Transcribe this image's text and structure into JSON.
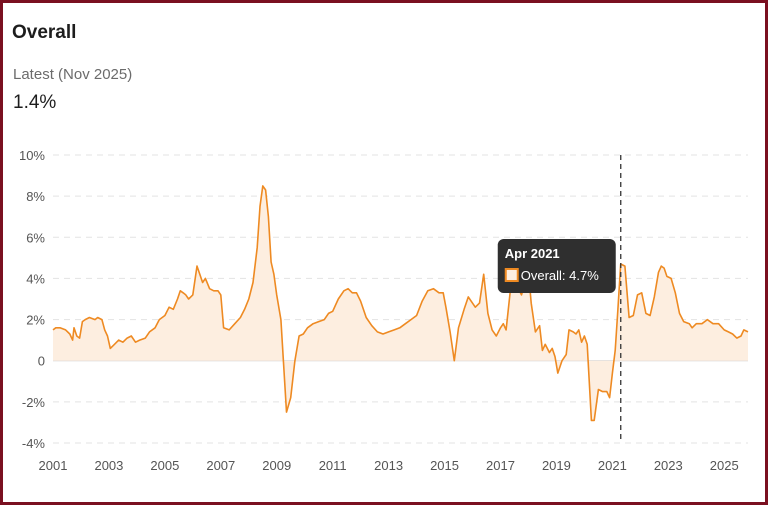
{
  "header": {
    "title": "Overall",
    "latest_label": "Latest (Nov 2025)",
    "latest_value": "1.4%"
  },
  "colors": {
    "line": "#ee8a22",
    "area": "#fdeee0",
    "frame": "#7a1020",
    "tooltip_bg": "#2f2f2f"
  },
  "chart_data": {
    "type": "area",
    "title": "Overall",
    "xlabel": "",
    "ylabel": "",
    "xlim": [
      2001.0,
      2025.85
    ],
    "ylim": [
      -4,
      10
    ],
    "y_ticks": [
      10,
      8,
      6,
      4,
      2,
      0,
      -2,
      -4
    ],
    "y_tick_labels": [
      "10%",
      "8%",
      "6%",
      "4%",
      "2%",
      "0",
      "-2%",
      "-4%"
    ],
    "x_ticks": [
      2001,
      2003,
      2005,
      2007,
      2009,
      2011,
      2013,
      2015,
      2017,
      2019,
      2021,
      2023,
      2025
    ],
    "x_tick_labels": [
      "2001",
      "2003",
      "2005",
      "2007",
      "2009",
      "2011",
      "2013",
      "2015",
      "2017",
      "2019",
      "2021",
      "2023",
      "2025"
    ],
    "grid": "horizontal-dashed",
    "series": [
      {
        "name": "Overall",
        "points": [
          [
            2001.0,
            1.5
          ],
          [
            2001.1,
            1.6
          ],
          [
            2001.25,
            1.6
          ],
          [
            2001.45,
            1.5
          ],
          [
            2001.6,
            1.3
          ],
          [
            2001.7,
            1.0
          ],
          [
            2001.75,
            1.6
          ],
          [
            2001.85,
            1.2
          ],
          [
            2001.95,
            1.1
          ],
          [
            2002.05,
            1.9
          ],
          [
            2002.15,
            2.0
          ],
          [
            2002.3,
            2.1
          ],
          [
            2002.5,
            2.0
          ],
          [
            2002.6,
            2.1
          ],
          [
            2002.75,
            2.0
          ],
          [
            2002.85,
            1.5
          ],
          [
            2002.95,
            1.2
          ],
          [
            2003.05,
            0.6
          ],
          [
            2003.2,
            0.8
          ],
          [
            2003.35,
            1.0
          ],
          [
            2003.5,
            0.9
          ],
          [
            2003.65,
            1.1
          ],
          [
            2003.8,
            1.2
          ],
          [
            2003.95,
            0.9
          ],
          [
            2004.1,
            1.0
          ],
          [
            2004.3,
            1.1
          ],
          [
            2004.45,
            1.4
          ],
          [
            2004.65,
            1.6
          ],
          [
            2004.8,
            2.0
          ],
          [
            2005.0,
            2.2
          ],
          [
            2005.15,
            2.6
          ],
          [
            2005.3,
            2.5
          ],
          [
            2005.45,
            3.0
          ],
          [
            2005.55,
            3.4
          ],
          [
            2005.65,
            3.3
          ],
          [
            2005.75,
            3.2
          ],
          [
            2005.85,
            3.0
          ],
          [
            2006.0,
            3.2
          ],
          [
            2006.15,
            4.6
          ],
          [
            2006.25,
            4.2
          ],
          [
            2006.35,
            3.8
          ],
          [
            2006.45,
            4.0
          ],
          [
            2006.6,
            3.5
          ],
          [
            2006.75,
            3.4
          ],
          [
            2006.9,
            3.4
          ],
          [
            2007.0,
            3.2
          ],
          [
            2007.1,
            1.6
          ],
          [
            2007.3,
            1.5
          ],
          [
            2007.5,
            1.8
          ],
          [
            2007.7,
            2.1
          ],
          [
            2007.85,
            2.5
          ],
          [
            2008.0,
            3.0
          ],
          [
            2008.15,
            3.8
          ],
          [
            2008.3,
            5.5
          ],
          [
            2008.4,
            7.5
          ],
          [
            2008.5,
            8.5
          ],
          [
            2008.6,
            8.3
          ],
          [
            2008.7,
            7.0
          ],
          [
            2008.8,
            4.8
          ],
          [
            2008.9,
            4.2
          ],
          [
            2009.0,
            3.2
          ],
          [
            2009.15,
            2.0
          ],
          [
            2009.35,
            -2.5
          ],
          [
            2009.5,
            -1.8
          ],
          [
            2009.65,
            0.0
          ],
          [
            2009.8,
            1.2
          ],
          [
            2009.95,
            1.3
          ],
          [
            2010.1,
            1.6
          ],
          [
            2010.3,
            1.8
          ],
          [
            2010.5,
            1.9
          ],
          [
            2010.7,
            2.0
          ],
          [
            2010.85,
            2.3
          ],
          [
            2011.0,
            2.4
          ],
          [
            2011.2,
            3.0
          ],
          [
            2011.4,
            3.4
          ],
          [
            2011.55,
            3.5
          ],
          [
            2011.7,
            3.3
          ],
          [
            2011.85,
            3.3
          ],
          [
            2012.0,
            2.9
          ],
          [
            2012.2,
            2.1
          ],
          [
            2012.4,
            1.7
          ],
          [
            2012.6,
            1.4
          ],
          [
            2012.8,
            1.3
          ],
          [
            2013.0,
            1.4
          ],
          [
            2013.2,
            1.5
          ],
          [
            2013.4,
            1.6
          ],
          [
            2013.6,
            1.8
          ],
          [
            2013.8,
            2.0
          ],
          [
            2014.0,
            2.2
          ],
          [
            2014.2,
            2.9
          ],
          [
            2014.4,
            3.4
          ],
          [
            2014.6,
            3.5
          ],
          [
            2014.8,
            3.3
          ],
          [
            2014.95,
            3.3
          ],
          [
            2015.05,
            2.6
          ],
          [
            2015.2,
            1.4
          ],
          [
            2015.35,
            0.0
          ],
          [
            2015.5,
            1.6
          ],
          [
            2015.7,
            2.5
          ],
          [
            2015.85,
            3.1
          ],
          [
            2015.95,
            2.9
          ],
          [
            2016.1,
            2.6
          ],
          [
            2016.25,
            2.8
          ],
          [
            2016.4,
            4.2
          ],
          [
            2016.55,
            2.3
          ],
          [
            2016.7,
            1.5
          ],
          [
            2016.85,
            1.2
          ],
          [
            2017.0,
            1.6
          ],
          [
            2017.1,
            1.8
          ],
          [
            2017.2,
            1.5
          ],
          [
            2017.35,
            3.4
          ],
          [
            2017.45,
            4.6
          ],
          [
            2017.6,
            3.6
          ],
          [
            2017.75,
            3.2
          ],
          [
            2017.9,
            3.9
          ],
          [
            2018.0,
            4.3
          ],
          [
            2018.1,
            2.8
          ],
          [
            2018.25,
            1.4
          ],
          [
            2018.4,
            1.7
          ],
          [
            2018.5,
            0.5
          ],
          [
            2018.6,
            0.8
          ],
          [
            2018.75,
            0.4
          ],
          [
            2018.85,
            0.6
          ],
          [
            2018.95,
            0.2
          ],
          [
            2019.05,
            -0.6
          ],
          [
            2019.2,
            0.0
          ],
          [
            2019.35,
            0.3
          ],
          [
            2019.45,
            1.5
          ],
          [
            2019.6,
            1.4
          ],
          [
            2019.7,
            1.3
          ],
          [
            2019.8,
            1.5
          ],
          [
            2019.9,
            0.9
          ],
          [
            2020.0,
            1.2
          ],
          [
            2020.1,
            0.8
          ],
          [
            2020.25,
            -2.9
          ],
          [
            2020.35,
            -2.9
          ],
          [
            2020.5,
            -1.4
          ],
          [
            2020.65,
            -1.5
          ],
          [
            2020.8,
            -1.5
          ],
          [
            2020.9,
            -1.8
          ],
          [
            2021.0,
            -0.6
          ],
          [
            2021.1,
            0.5
          ],
          [
            2021.2,
            2.5
          ],
          [
            2021.3,
            4.7
          ],
          [
            2021.45,
            4.6
          ],
          [
            2021.6,
            2.1
          ],
          [
            2021.75,
            2.2
          ],
          [
            2021.9,
            3.2
          ],
          [
            2022.05,
            3.3
          ],
          [
            2022.2,
            2.3
          ],
          [
            2022.35,
            2.2
          ],
          [
            2022.5,
            3.1
          ],
          [
            2022.65,
            4.3
          ],
          [
            2022.75,
            4.6
          ],
          [
            2022.85,
            4.5
          ],
          [
            2022.95,
            4.1
          ],
          [
            2023.1,
            4.0
          ],
          [
            2023.25,
            3.3
          ],
          [
            2023.4,
            2.3
          ],
          [
            2023.55,
            1.9
          ],
          [
            2023.75,
            1.8
          ],
          [
            2023.85,
            1.6
          ],
          [
            2024.0,
            1.8
          ],
          [
            2024.2,
            1.8
          ],
          [
            2024.4,
            2.0
          ],
          [
            2024.6,
            1.8
          ],
          [
            2024.8,
            1.8
          ],
          [
            2025.0,
            1.5
          ],
          [
            2025.15,
            1.4
          ],
          [
            2025.3,
            1.3
          ],
          [
            2025.45,
            1.1
          ],
          [
            2025.6,
            1.2
          ],
          [
            2025.7,
            1.5
          ],
          [
            2025.85,
            1.4
          ]
        ]
      }
    ],
    "tooltip": {
      "title": "Apr 2021",
      "series_label": "Overall",
      "value_text": "4.7%",
      "x": 2021.3,
      "y": 4.7
    }
  }
}
